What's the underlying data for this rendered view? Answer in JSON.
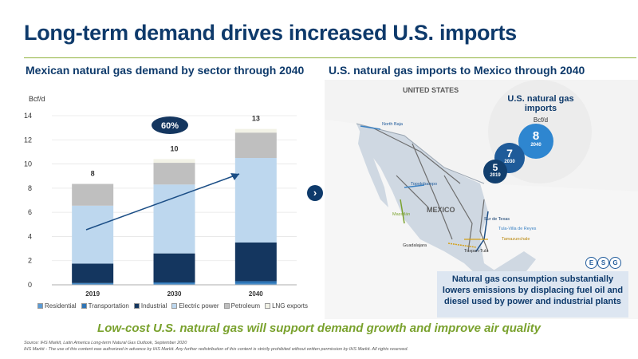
{
  "title": "Long-term demand drives increased U.S. imports",
  "left_subtitle": "Mexican natural gas demand by sector through 2040",
  "right_subtitle": "U.S. natural gas imports to Mexico through 2040",
  "growth_badge": "60%",
  "chart_data": {
    "type": "bar",
    "stacked": true,
    "ylabel": "Bcf/d",
    "ylim": [
      0,
      14
    ],
    "yticks": [
      0,
      2,
      4,
      6,
      8,
      10,
      12,
      14
    ],
    "categories": [
      "2019",
      "2030",
      "2040"
    ],
    "totals": [
      "8",
      "10",
      "13"
    ],
    "series": [
      {
        "name": "Residential",
        "color": "#5b9bd5",
        "values": [
          0.1,
          0.1,
          0.1
        ]
      },
      {
        "name": "Transportation",
        "color": "#2e75b6",
        "values": [
          0.05,
          0.1,
          0.2
        ]
      },
      {
        "name": "Industrial",
        "color": "#14365f",
        "values": [
          1.6,
          2.4,
          3.2
        ]
      },
      {
        "name": "Electric power",
        "color": "#bdd7ee",
        "values": [
          4.8,
          5.7,
          7.0
        ]
      },
      {
        "name": "Petroleum",
        "color": "#bfbfbf",
        "values": [
          1.8,
          1.8,
          2.1
        ]
      },
      {
        "name": "LNG exports",
        "color": "#f2f2e6",
        "values": [
          0,
          0.3,
          0.3
        ]
      }
    ]
  },
  "map": {
    "country_us": "UNITED STATES",
    "country_mx": "MEXICO",
    "pipelines": [
      "North Baja",
      "Topolobampo",
      "Mazatlán",
      "Guadalajara",
      "Sur de Texas",
      "Tuxpan-Tula",
      "Tula-Villa de Reyes",
      "Tamazunchale"
    ]
  },
  "imports": {
    "title_line1": "U.S. natural gas",
    "title_line2": "imports",
    "unit": "Bcf/d",
    "bubbles": [
      {
        "value": "5",
        "year": "2019",
        "color": "#123f6e"
      },
      {
        "value": "7",
        "year": "2030",
        "color": "#1f5b99"
      },
      {
        "value": "8",
        "year": "2040",
        "color": "#2e86d0"
      }
    ]
  },
  "esg": [
    "E",
    "S",
    "G"
  ],
  "callout": "Natural gas consumption substantially lowers emissions by displacing fuel oil and diesel used by power and industrial plants",
  "bottom_line": "Low-cost U.S. natural gas will support demand growth and improve air quality",
  "source": "Source: IHS Markit, Latin America Long-term Natural Gas Outlook, September 2020",
  "copyright": "IHS Markit - The use of this content was authorized in advance by IHS Markit. Any further redistribution of this content is strictly prohibited without written permission by IHS Markit. All rights reserved."
}
